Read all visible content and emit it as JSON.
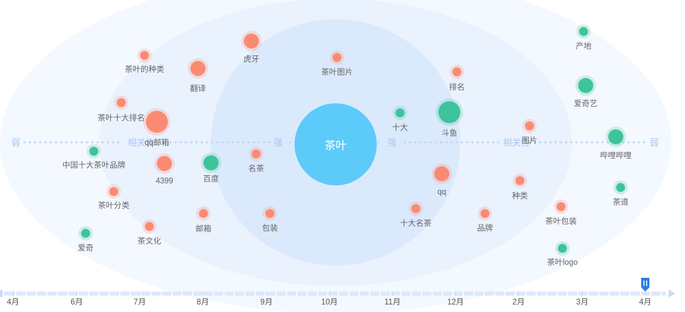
{
  "chart_data": {
    "type": "scatter",
    "center": {
      "label": "茶叶"
    },
    "scale_labels": {
      "weak": "弱",
      "related": "相关性",
      "strong": "强"
    },
    "colors": {
      "center": "#5ccbf9",
      "rising": "#fb8a72",
      "falling": "#3ec39a",
      "ring": "#dbe9fd",
      "axis_dot": "#b9d3f4",
      "axis_text": "#a9c6f0"
    },
    "legend": {
      "visible": false
    },
    "grid": false,
    "nodes": [
      {
        "label": "茶叶的种类",
        "color": "rising",
        "size": "small"
      },
      {
        "label": "翻译",
        "color": "rising",
        "size": "medium"
      },
      {
        "label": "虎牙",
        "color": "rising",
        "size": "medium"
      },
      {
        "label": "茶叶图片",
        "color": "rising",
        "size": "small"
      },
      {
        "label": "排名",
        "color": "rising",
        "size": "small"
      },
      {
        "label": "产地",
        "color": "falling",
        "size": "small"
      },
      {
        "label": "爱奇艺",
        "color": "falling",
        "size": "medium"
      },
      {
        "label": "茶叶十大排名",
        "color": "rising",
        "size": "small"
      },
      {
        "label": "qq邮箱",
        "color": "rising",
        "size": "large"
      },
      {
        "label": "十大",
        "color": "falling",
        "size": "small"
      },
      {
        "label": "斗鱼",
        "color": "falling",
        "size": "large"
      },
      {
        "label": "图片",
        "color": "rising",
        "size": "small"
      },
      {
        "label": "哔哩哔哩",
        "color": "falling",
        "size": "medium"
      },
      {
        "label": "中国十大茶叶品牌",
        "color": "falling",
        "size": "small"
      },
      {
        "label": "4399",
        "color": "rising",
        "size": "medium"
      },
      {
        "label": "百度",
        "color": "falling",
        "size": "medium"
      },
      {
        "label": "名茶",
        "color": "rising",
        "size": "small"
      },
      {
        "label": "qq",
        "color": "rising",
        "size": "medium"
      },
      {
        "label": "种类",
        "color": "rising",
        "size": "small"
      },
      {
        "label": "茶道",
        "color": "falling",
        "size": "small"
      },
      {
        "label": "茶叶分类",
        "color": "rising",
        "size": "small"
      },
      {
        "label": "邮箱",
        "color": "rising",
        "size": "small"
      },
      {
        "label": "包装",
        "color": "rising",
        "size": "small"
      },
      {
        "label": "十大名茶",
        "color": "rising",
        "size": "small"
      },
      {
        "label": "品牌",
        "color": "rising",
        "size": "small"
      },
      {
        "label": "茶叶包装",
        "color": "rising",
        "size": "small"
      },
      {
        "label": "爱奇",
        "color": "falling",
        "size": "small"
      },
      {
        "label": "茶文化",
        "color": "rising",
        "size": "small"
      },
      {
        "label": "茶叶logo",
        "color": "falling",
        "size": "small"
      }
    ],
    "timeline": {
      "ticks": [
        "4月",
        "6月",
        "7月",
        "8月",
        "9月",
        "10月",
        "11月",
        "12月",
        "2月",
        "3月",
        "4月"
      ],
      "handle_icon": "pause-handle-icon",
      "selected_tick": "4月"
    }
  }
}
